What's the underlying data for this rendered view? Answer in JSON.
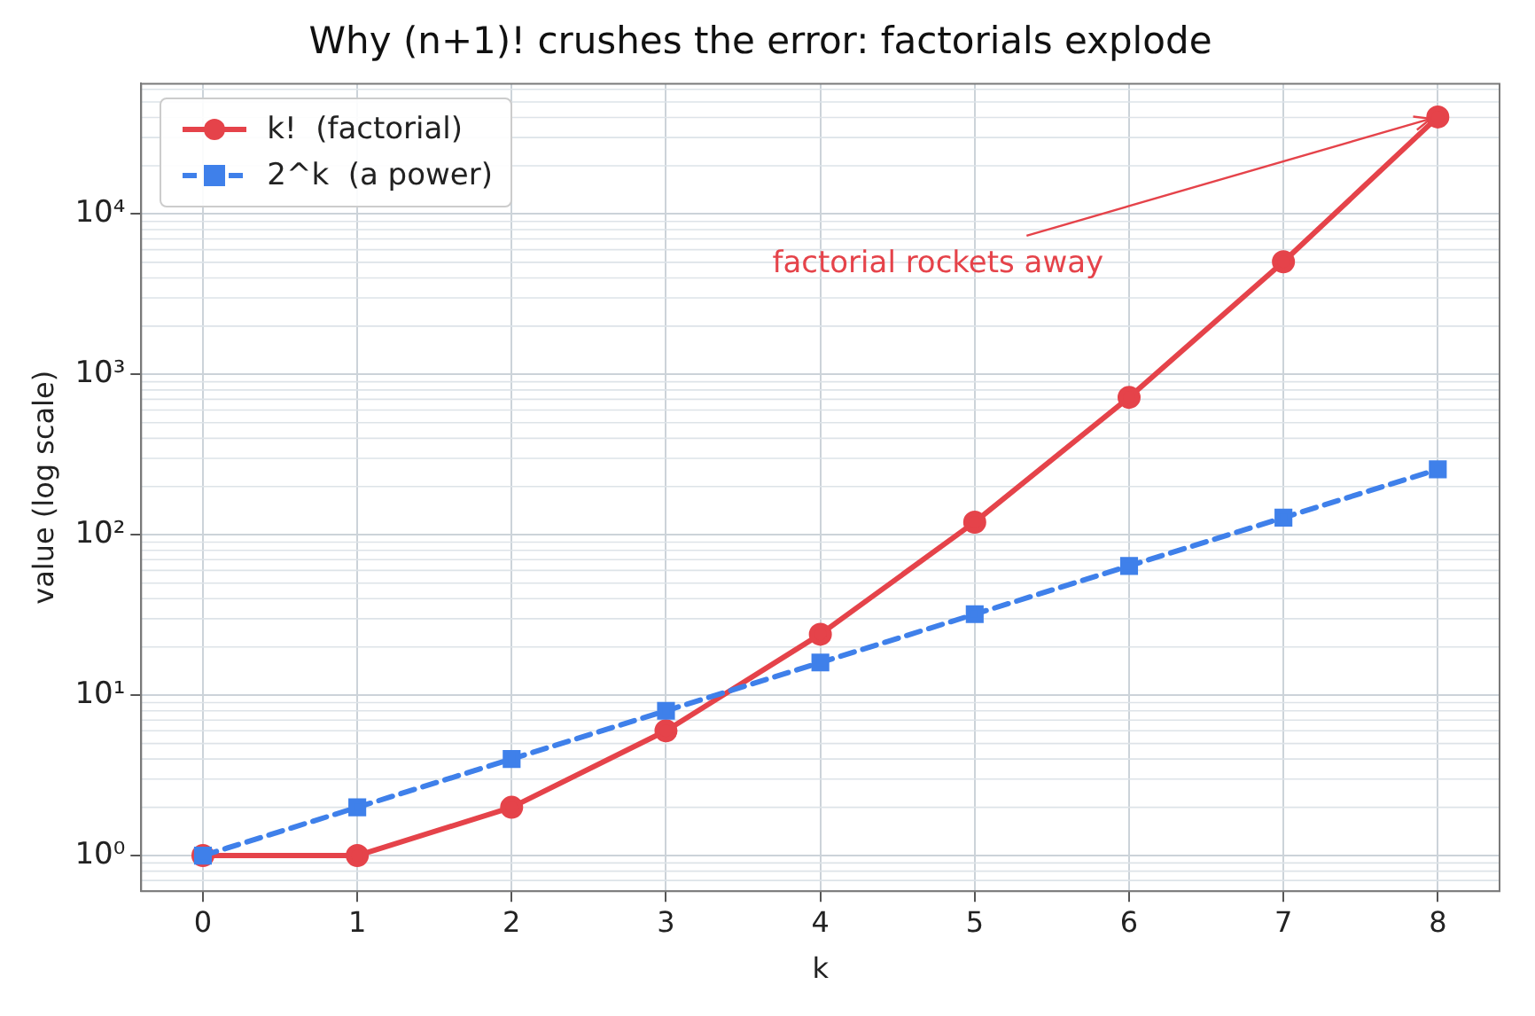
{
  "chart_data": {
    "type": "line",
    "title": "Why (n+1)! crushes the error: factorials explode",
    "xlabel": "k",
    "ylabel": "value (log scale)",
    "x": [
      0,
      1,
      2,
      3,
      4,
      5,
      6,
      7,
      8
    ],
    "series": [
      {
        "name": "k!  (factorial)",
        "color": "#e5434a",
        "marker": "circle",
        "line_style": "solid",
        "values": [
          1,
          1,
          2,
          6,
          24,
          120,
          720,
          5040,
          40320
        ]
      },
      {
        "name": "2^k  (a power)",
        "color": "#3f80ea",
        "marker": "square",
        "line_style": "dashed",
        "values": [
          1,
          2,
          4,
          8,
          16,
          32,
          64,
          128,
          256
        ]
      }
    ],
    "log": "y",
    "xlim": [
      -0.4,
      8.4
    ],
    "xticks": [
      0,
      1,
      2,
      3,
      4,
      5,
      6,
      7,
      8
    ],
    "ylim": [
      0.6,
      65000
    ],
    "yticks": [
      {
        "value": 1,
        "label": "10⁰"
      },
      {
        "value": 10,
        "label": "10¹"
      },
      {
        "value": 100,
        "label": "10²"
      },
      {
        "value": 1000,
        "label": "10³"
      },
      {
        "value": 10000,
        "label": "10⁴"
      }
    ],
    "grid": true,
    "legend": "top left",
    "annotations": [
      {
        "text": "factorial rockets away",
        "x": 8,
        "y": 40320
      }
    ]
  }
}
